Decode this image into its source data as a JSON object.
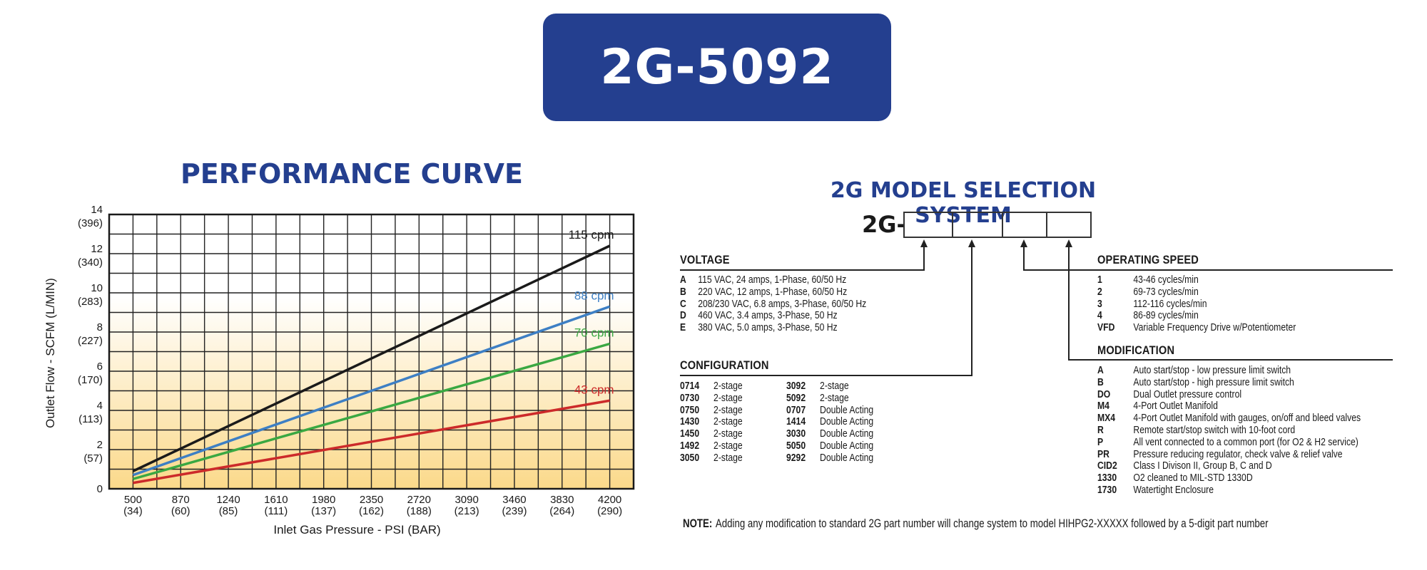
{
  "header": {
    "model": "2G-5092"
  },
  "performance": {
    "heading": "PERFORMANCE CURVE"
  },
  "chart_data": {
    "type": "line",
    "title": "PERFORMANCE CURVE",
    "xlabel": "Inlet Gas Pressure - PSI (BAR)",
    "ylabel": "Outlet Flow - SCFM (L/MIN)",
    "x_ticks": [
      "500",
      "870",
      "1240",
      "1610",
      "1980",
      "2350",
      "2720",
      "3090",
      "3460",
      "3830",
      "4200"
    ],
    "x_ticks_sub": [
      "(34)",
      "(60)",
      "(85)",
      "(111)",
      "(137)",
      "(162)",
      "(188)",
      "(213)",
      "(239)",
      "(264)",
      "(290)"
    ],
    "y_ticks": [
      "0",
      "2",
      "4",
      "6",
      "8",
      "10",
      "12",
      "14"
    ],
    "y_ticks_sub": [
      "",
      "(57)",
      "(113)",
      "(170)",
      "(227)",
      "(283)",
      "(340)",
      "(396)"
    ],
    "xlim": [
      315,
      4385
    ],
    "ylim": [
      0,
      14
    ],
    "grid": true,
    "series": [
      {
        "name": "115 cpm",
        "color": "#1a1a1a",
        "x": [
          500,
          4200
        ],
        "y": [
          0.9,
          12.4
        ]
      },
      {
        "name": "88 cpm",
        "color": "#3d7fc4",
        "x": [
          500,
          4200
        ],
        "y": [
          0.7,
          9.3
        ]
      },
      {
        "name": "70 cpm",
        "color": "#3aa842",
        "x": [
          500,
          4200
        ],
        "y": [
          0.5,
          7.4
        ]
      },
      {
        "name": "43 cpm",
        "color": "#cc2a2a",
        "x": [
          500,
          4200
        ],
        "y": [
          0.3,
          4.5
        ]
      }
    ]
  },
  "selection": {
    "heading": "2G MODEL SELECTION SYSTEM",
    "prefix": "2G-",
    "voltage": {
      "heading": "VOLTAGE",
      "items": [
        {
          "code": "A",
          "desc": "115 VAC, 24 amps, 1-Phase, 60/50 Hz"
        },
        {
          "code": "B",
          "desc": "220 VAC,  12 amps, 1-Phase, 60/50 Hz"
        },
        {
          "code": "C",
          "desc": "208/230 VAC,  6.8 amps, 3-Phase, 60/50 Hz"
        },
        {
          "code": "D",
          "desc": "460 VAC,  3.4 amps, 3-Phase, 50 Hz"
        },
        {
          "code": "E",
          "desc": "380 VAC, 5.0 amps, 3-Phase, 50 Hz"
        }
      ]
    },
    "configuration": {
      "heading": "CONFIGURATION",
      "left": [
        {
          "code": "0714",
          "desc": "2-stage"
        },
        {
          "code": "0730",
          "desc": "2-stage"
        },
        {
          "code": "0750",
          "desc": "2-stage"
        },
        {
          "code": "1430",
          "desc": "2-stage"
        },
        {
          "code": "1450",
          "desc": "2-stage"
        },
        {
          "code": "1492",
          "desc": "2-stage"
        },
        {
          "code": "3050",
          "desc": "2-stage"
        }
      ],
      "right": [
        {
          "code": "3092",
          "desc": "2-stage"
        },
        {
          "code": "5092",
          "desc": "2-stage"
        },
        {
          "code": "0707",
          "desc": "Double Acting"
        },
        {
          "code": "1414",
          "desc": "Double Acting"
        },
        {
          "code": "3030",
          "desc": "Double Acting"
        },
        {
          "code": "5050",
          "desc": "Double Acting"
        },
        {
          "code": "9292",
          "desc": "Double Acting"
        }
      ]
    },
    "speed": {
      "heading": "OPERATING SPEED",
      "items": [
        {
          "code": "1",
          "desc": "43-46 cycles/min"
        },
        {
          "code": "2",
          "desc": "69-73 cycles/min"
        },
        {
          "code": "3",
          "desc": "112-116 cycles/min"
        },
        {
          "code": "4",
          "desc": "86-89 cycles/min"
        },
        {
          "code": "VFD",
          "desc": "Variable Frequency Drive w/Potentiometer"
        }
      ]
    },
    "modification": {
      "heading": "MODIFICATION",
      "items": [
        {
          "code": "A",
          "desc": "Auto start/stop - low pressure limit switch"
        },
        {
          "code": "B",
          "desc": "Auto start/stop - high pressure limit switch"
        },
        {
          "code": "DO",
          "desc": "Dual Outlet pressure control"
        },
        {
          "code": "M4",
          "desc": "4-Port Outlet Manifold"
        },
        {
          "code": "MX4",
          "desc": "4-Port Outlet Manifold with gauges, on/off and bleed valves"
        },
        {
          "code": "R",
          "desc": "Remote start/stop switch with 10-foot cord"
        },
        {
          "code": "P",
          "desc": "All vent connected to a common port (for O2 & H2 service)"
        },
        {
          "code": "PR",
          "desc": "Pressure reducing regulator, check valve & relief valve"
        },
        {
          "code": "CID2",
          "desc": "Class I Divison II, Group B, C and D"
        },
        {
          "code": "1330",
          "desc": "O2 cleaned to MIL-STD 1330D"
        },
        {
          "code": "1730",
          "desc": "Watertight Enclosure"
        }
      ]
    },
    "note": {
      "label": "NOTE:",
      "text": "Adding any modification to standard 2G part number will change system to model HIHPG2-XXXXX followed by a 5-digit part number"
    }
  }
}
